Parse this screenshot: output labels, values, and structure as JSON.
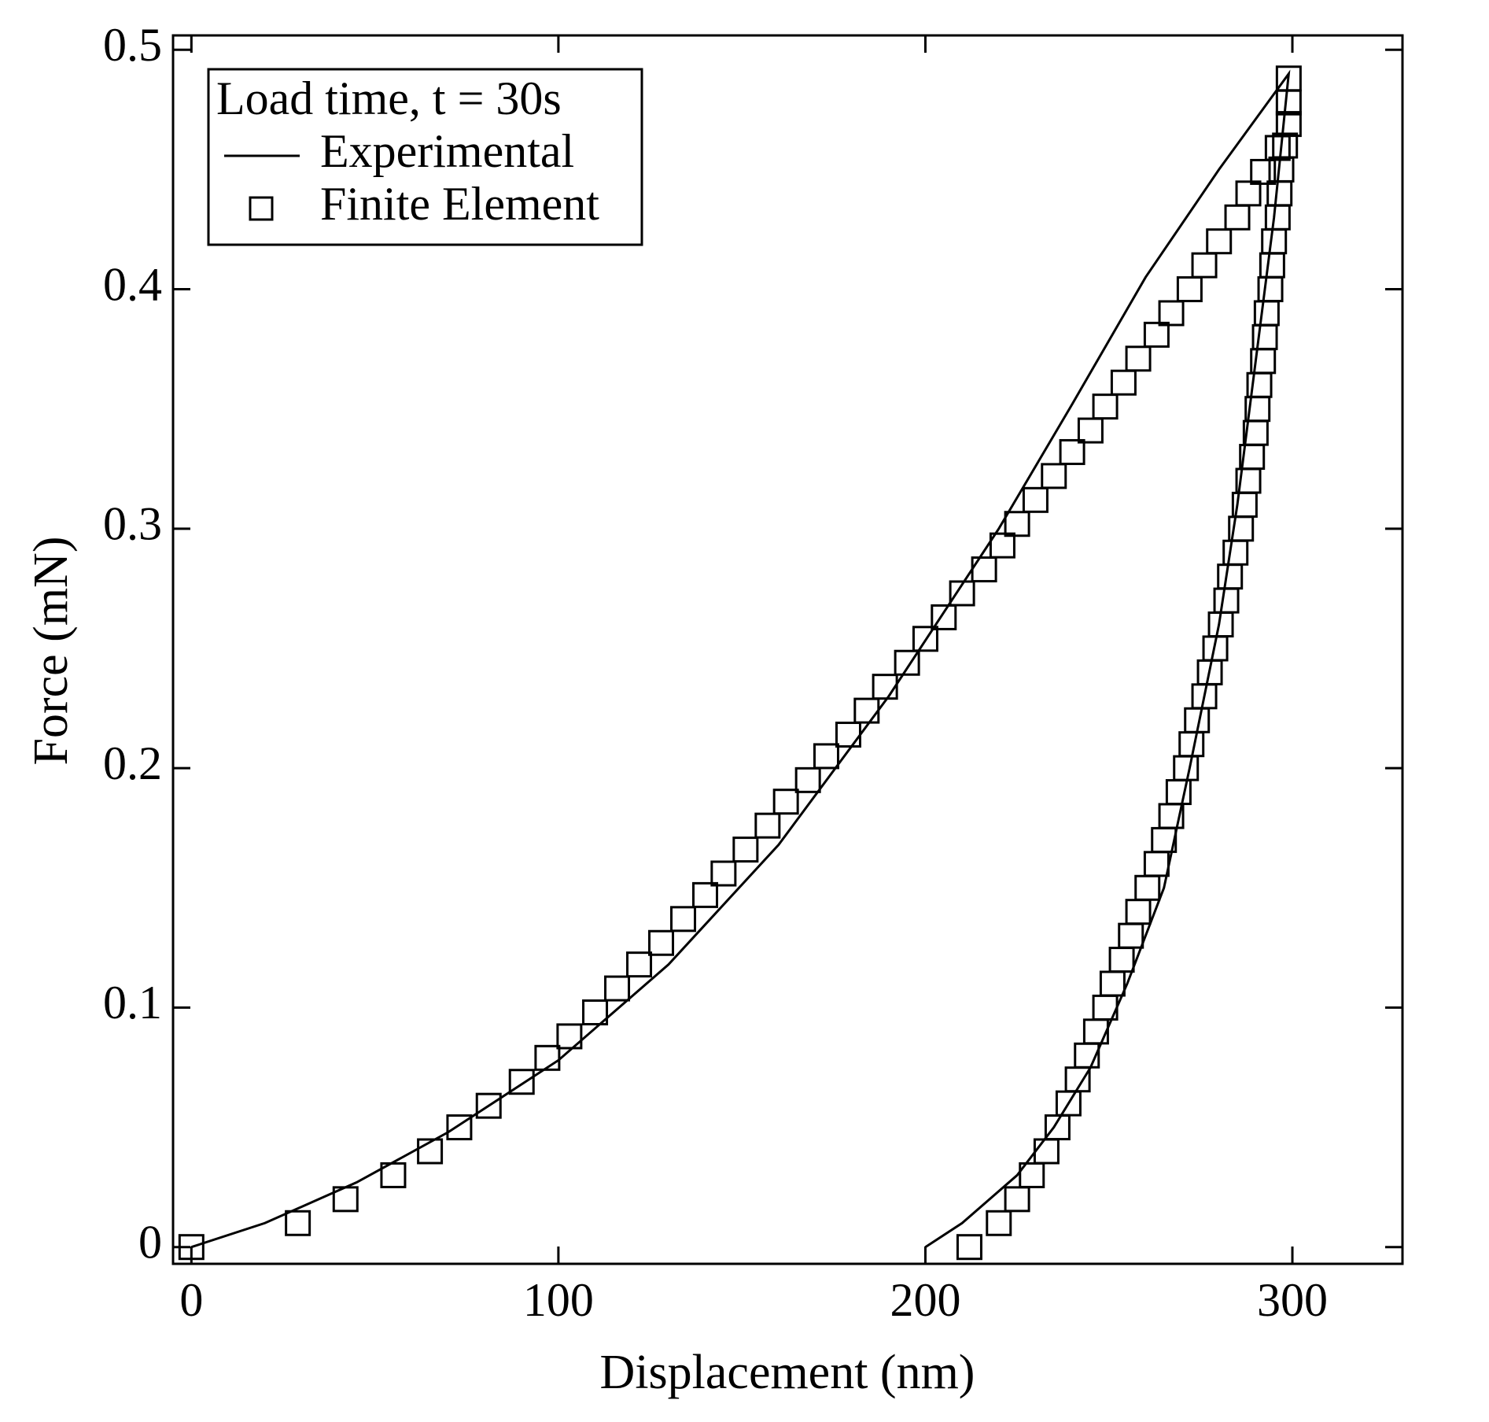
{
  "chart_data": {
    "type": "scatter",
    "xlabel": "Displacement (nm)",
    "ylabel": "Force (mN)",
    "legend_title": "Load time, t = 30s",
    "legend": "upper left",
    "xlim": [
      -5,
      330
    ],
    "xticks": [
      0,
      100,
      200,
      300
    ],
    "ylim": [
      -0.007,
      0.506
    ],
    "yticks": [
      0,
      0.1,
      0.2,
      0.3,
      0.4,
      0.5
    ],
    "series": [
      {
        "name": "Experimental",
        "color": "#000000",
        "marker": "none",
        "line": true,
        "x": [
          0,
          20,
          45,
          70,
          100,
          130,
          160,
          190,
          220,
          240,
          260,
          280,
          299,
          295,
          290,
          285,
          280,
          272,
          265,
          255,
          245,
          235,
          225,
          210,
          200
        ],
        "values": [
          0,
          0.01,
          0.027,
          0.048,
          0.078,
          0.118,
          0.168,
          0.23,
          0.3,
          0.352,
          0.405,
          0.45,
          0.49,
          0.43,
          0.37,
          0.31,
          0.26,
          0.2,
          0.15,
          0.11,
          0.075,
          0.05,
          0.03,
          0.01,
          0
        ]
      },
      {
        "name": "Finite Element",
        "color": "#000000",
        "marker": "square",
        "line": false,
        "x": [
          0,
          29,
          42,
          55,
          65,
          73,
          81,
          90,
          97,
          103,
          110,
          116,
          122,
          128,
          134,
          140,
          145,
          151,
          157,
          162,
          168,
          173,
          179,
          184,
          189,
          195,
          200,
          205,
          210,
          216,
          221,
          225,
          230,
          235,
          240,
          245,
          249,
          254,
          258,
          263,
          267,
          272,
          276,
          280,
          285,
          288,
          292,
          296,
          299,
          299,
          299,
          298,
          297,
          296.5,
          296,
          295,
          294.5,
          294,
          293,
          292.5,
          292,
          291,
          290.5,
          290,
          289,
          288,
          287,
          286,
          284.5,
          283,
          282,
          280.5,
          279,
          277.5,
          276,
          274,
          272.5,
          271,
          269,
          267,
          265,
          263,
          260.5,
          258,
          256,
          253.5,
          251,
          249,
          246.5,
          244,
          241.5,
          239,
          236,
          233,
          229,
          225,
          220,
          212
        ],
        "values": [
          0,
          0.01,
          0.02,
          0.03,
          0.04,
          0.05,
          0.059,
          0.069,
          0.079,
          0.088,
          0.098,
          0.108,
          0.118,
          0.127,
          0.137,
          0.147,
          0.156,
          0.166,
          0.176,
          0.186,
          0.195,
          0.205,
          0.214,
          0.224,
          0.234,
          0.244,
          0.254,
          0.263,
          0.273,
          0.283,
          0.293,
          0.302,
          0.312,
          0.322,
          0.332,
          0.341,
          0.351,
          0.361,
          0.371,
          0.381,
          0.39,
          0.4,
          0.41,
          0.42,
          0.43,
          0.44,
          0.449,
          0.459,
          0.469,
          0.478,
          0.488,
          0.46,
          0.45,
          0.44,
          0.43,
          0.42,
          0.41,
          0.4,
          0.39,
          0.38,
          0.37,
          0.36,
          0.35,
          0.34,
          0.33,
          0.32,
          0.31,
          0.3,
          0.29,
          0.28,
          0.27,
          0.26,
          0.25,
          0.24,
          0.23,
          0.22,
          0.21,
          0.2,
          0.19,
          0.18,
          0.17,
          0.16,
          0.15,
          0.14,
          0.13,
          0.12,
          0.11,
          0.1,
          0.09,
          0.08,
          0.07,
          0.06,
          0.05,
          0.04,
          0.03,
          0.02,
          0.01,
          0
        ]
      }
    ]
  }
}
